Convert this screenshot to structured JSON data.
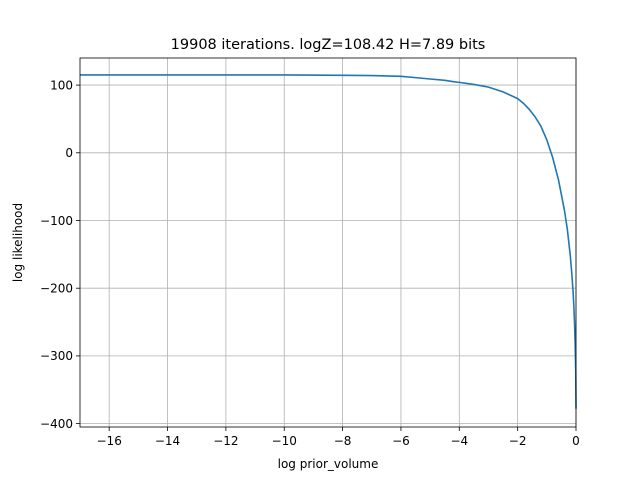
{
  "chart_data": {
    "type": "line",
    "title": "19908 iterations. logZ=108.42 H=7.89 bits",
    "xlabel": "log prior_volume",
    "ylabel": "log likelihood",
    "xlim": [
      -17.0,
      0.0
    ],
    "ylim": [
      -405,
      140
    ],
    "xticks": [
      -16,
      -14,
      -12,
      -10,
      -8,
      -6,
      -4,
      -2,
      0
    ],
    "xtick_labels": [
      "−16",
      "−14",
      "−12",
      "−10",
      "−8",
      "−6",
      "−4",
      "−2",
      "0"
    ],
    "yticks": [
      100,
      0,
      -100,
      -200,
      -300,
      -400
    ],
    "ytick_labels": [
      "100",
      "0",
      "−100",
      "−200",
      "−300",
      "−400"
    ],
    "grid": true,
    "series": [
      {
        "color": "#1f77b4",
        "x": [
          -17.0,
          -14.0,
          -12.0,
          -10.0,
          -8.0,
          -7.0,
          -6.0,
          -5.5,
          -5.0,
          -4.5,
          -4.2,
          -4.0,
          -3.5,
          -3.0,
          -2.5,
          -2.0,
          -1.8,
          -1.6,
          -1.4,
          -1.2,
          -1.0,
          -0.8,
          -0.6,
          -0.4,
          -0.3,
          -0.2,
          -0.15,
          -0.1,
          -0.07,
          -0.05,
          -0.03,
          -0.01,
          0.0
        ],
        "y": [
          115,
          115,
          115,
          115,
          114.5,
          114,
          113,
          111,
          109,
          107,
          105,
          104,
          101,
          97,
          90,
          80,
          73,
          64,
          53,
          39,
          19,
          -7,
          -40,
          -84,
          -112,
          -150,
          -175,
          -205,
          -230,
          -252,
          -280,
          -320,
          -378
        ]
      }
    ]
  }
}
